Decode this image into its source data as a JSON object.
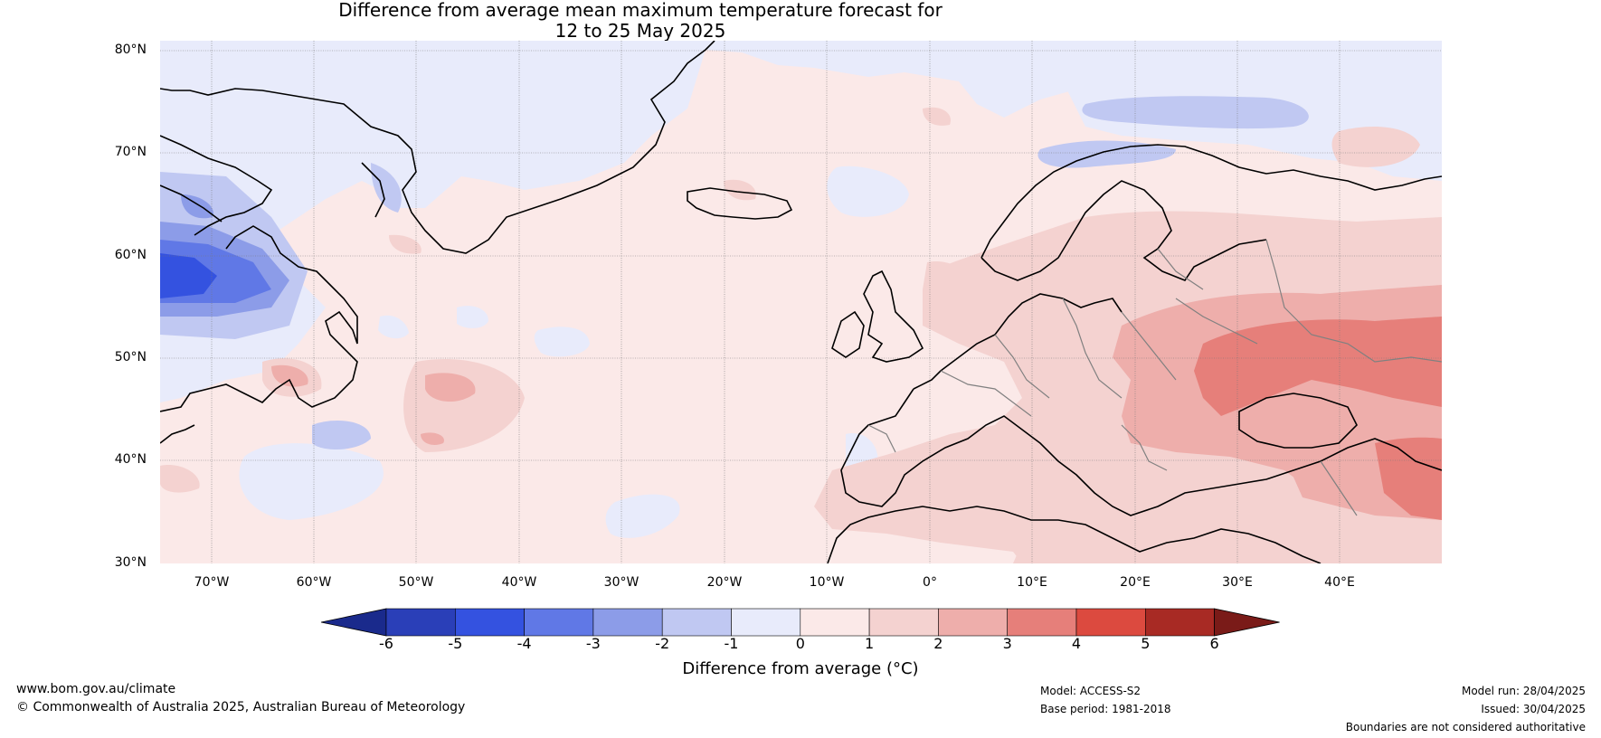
{
  "title": {
    "line1": "Difference from average mean maximum temperature forecast for",
    "line2": "12 to 25 May 2025"
  },
  "map": {
    "lat_labels": [
      "80°N",
      "70°N",
      "60°N",
      "50°N",
      "40°N",
      "30°N"
    ],
    "lon_labels": [
      "70°W",
      "60°W",
      "50°W",
      "40°W",
      "30°W",
      "20°W",
      "10°W",
      "0°",
      "10°E",
      "20°E",
      "30°E",
      "40°E"
    ],
    "lon_range": [
      -75,
      50
    ],
    "lat_range": [
      30,
      81
    ],
    "colors": {
      "land_outline": "#000000",
      "border": "#808080",
      "grid": "#777777"
    }
  },
  "colorbar": {
    "ticks": [
      "-6",
      "-5",
      "-4",
      "-3",
      "-2",
      "-1",
      "0",
      "1",
      "2",
      "3",
      "4",
      "5",
      "6"
    ],
    "colors": [
      "#1a2a8c",
      "#2a3fb8",
      "#3452e0",
      "#6078e6",
      "#8c9ce8",
      "#c0c8f2",
      "#e8ebfb",
      "#fbe9e8",
      "#f4d2d0",
      "#eeaeab",
      "#e67f7a",
      "#dc4a3f",
      "#a82a24",
      "#7a1b18"
    ],
    "label": "Difference from average (°C)"
  },
  "footer": {
    "url": "www.bom.gov.au/climate",
    "copyright": "© Commonwealth of Australia 2025, Australian Bureau of Meteorology",
    "model": "Model: ACCESS-S2",
    "base_period": "Base period: 1981-2018",
    "model_run": "Model run: 28/04/2025",
    "issued": "Issued: 30/04/2025",
    "disclaimer": "Boundaries are not considered authoritative"
  }
}
